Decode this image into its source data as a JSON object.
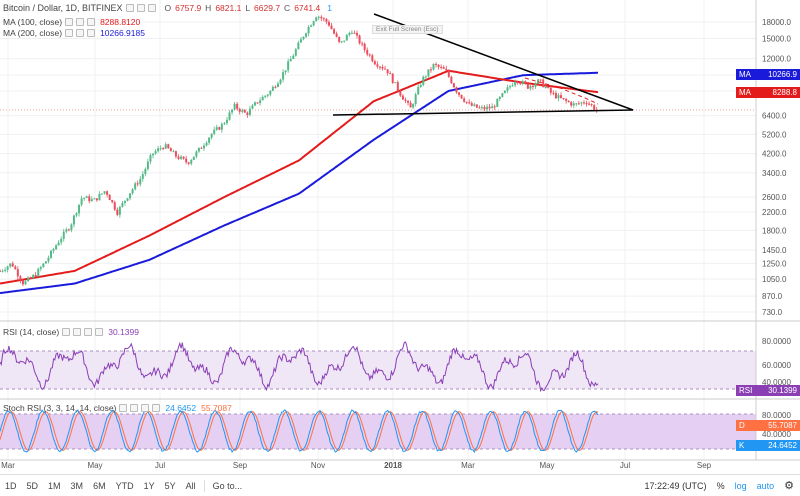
{
  "header": {
    "title": "Bitcoin / Dollar, 1D, BITFINEX",
    "ohlc": [
      {
        "k": "O",
        "v": "6757.9"
      },
      {
        "k": "H",
        "v": "6821.1"
      },
      {
        "k": "L",
        "v": "6629.7"
      },
      {
        "k": "C",
        "v": "6741.4"
      }
    ],
    "badge": "1"
  },
  "indicators": {
    "ma100": {
      "label": "MA (100, close)",
      "value": "8288.8120",
      "color": "#e31b1b",
      "tag": "8288.8"
    },
    "ma200": {
      "label": "MA (200, close)",
      "value": "10266.9185",
      "color": "#1a1adb",
      "tag": "10266.9"
    },
    "ma_tag_label": "MA",
    "rsi": {
      "label": "RSI (14, close)",
      "value": "30.1399",
      "tag_label": "RSI",
      "color": "#8a3fb5"
    },
    "stoch": {
      "label": "Stoch RSI (3, 3, 14, 14, close)",
      "k_value": "24.6452",
      "d_value": "55.7087",
      "k_color": "#2196f3",
      "d_color": "#ff7043",
      "k_label": "K",
      "d_label": "D"
    }
  },
  "tooltip_text": "Exit Full Screen (Esc)",
  "price_axis": [
    "18000.0",
    "15000.0",
    "12000.0",
    "10000.0",
    "8400.0",
    "6400.0",
    "5200.0",
    "4200.0",
    "3400.0",
    "2600.0",
    "2200.0",
    "1800.0",
    "1450.0",
    "1250.0",
    "1050.0",
    "870.0",
    "730.0"
  ],
  "rsi_axis": [
    "80.0000",
    "60.0000",
    "40.0000"
  ],
  "stoch_axis": [
    "80.0000",
    "40.0000"
  ],
  "time_axis": [
    "Mar",
    "May",
    "Jul",
    "Sep",
    "Nov",
    "2018",
    "Mar",
    "May",
    "Jul",
    "Sep"
  ],
  "bottombar": {
    "timeframes": [
      "1D",
      "5D",
      "1M",
      "3M",
      "6M",
      "YTD",
      "1Y",
      "5Y",
      "All"
    ],
    "goto": "Go to...",
    "clock": "17:22:49 (UTC)",
    "percent": "%",
    "log": "log",
    "auto": "auto",
    "settings_icon": "gear-icon"
  },
  "chart_data": {
    "type": "line",
    "title": "Bitcoin / Dollar, 1D, BITFINEX",
    "x": [
      "Mar",
      "May",
      "Jul",
      "Sep",
      "Nov",
      "2018",
      "Mar",
      "May",
      "Jul"
    ],
    "series": [
      {
        "name": "MA (100, close)",
        "values": [
          1000,
          1150,
          1700,
          2600,
          3900,
          7500,
          10500,
          9200,
          8290
        ]
      },
      {
        "name": "MA (200, close)",
        "values": [
          900,
          1000,
          1300,
          1900,
          2700,
          4900,
          8400,
          10000,
          10270
        ]
      }
    ],
    "price_path": [
      1150,
      1250,
      1000,
      1100,
      1300,
      1600,
      1900,
      2600,
      2500,
      2800,
      2200,
      2700,
      3200,
      4200,
      4600,
      4100,
      3800,
      4400,
      5200,
      5800,
      7100,
      6500,
      7500,
      8300,
      9900,
      12500,
      16000,
      19500,
      17800,
      14000,
      16500,
      13500,
      11500,
      10600,
      8400,
      6900,
      9500,
      11200,
      10500,
      8300,
      7200,
      6900,
      7000,
      8200,
      9600,
      8800,
      9400,
      8200,
      7600,
      7200,
      7500,
      6700
    ]
  }
}
